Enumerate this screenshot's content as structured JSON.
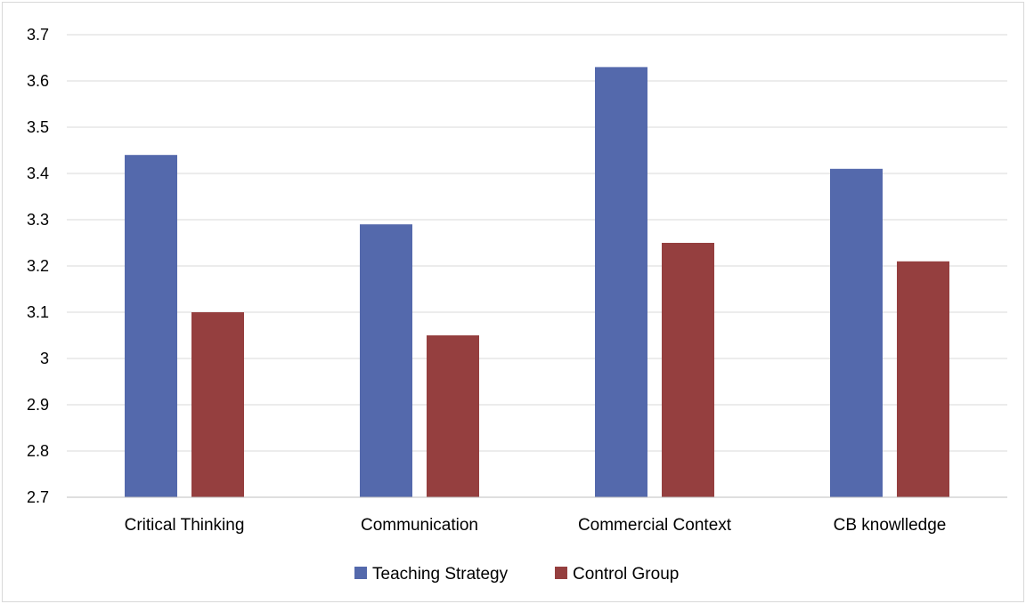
{
  "chart_data": {
    "type": "bar",
    "categories": [
      "Critical Thinking",
      "Communication",
      "Commercial Context",
      "CB knowlledge"
    ],
    "series": [
      {
        "name": "Teaching Strategy",
        "color": "#5469ac",
        "values": [
          3.44,
          3.29,
          3.63,
          3.41
        ]
      },
      {
        "name": "Control Group",
        "color": "#953f3f",
        "values": [
          3.1,
          3.05,
          3.25,
          3.21
        ]
      }
    ],
    "ylim": [
      2.7,
      3.7
    ],
    "yticks": [
      "2.7",
      "2.8",
      "2.9",
      "3",
      "3.1",
      "3.2",
      "3.3",
      "3.4",
      "3.5",
      "3.6",
      "3.7"
    ],
    "grid": true,
    "legend": "bottom",
    "title": "",
    "xlabel": "",
    "ylabel": ""
  }
}
